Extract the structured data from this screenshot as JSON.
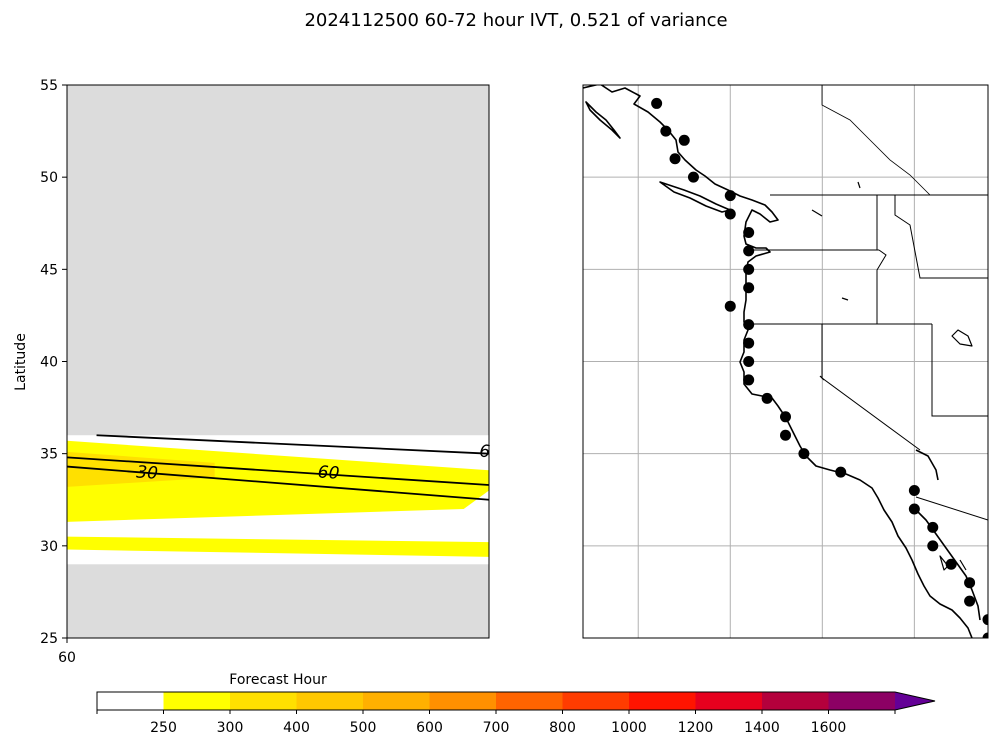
{
  "title": "2024112500 60-72 hour IVT, 0.521 of variance",
  "chart_data": [
    {
      "type": "heatmap",
      "panel": "left",
      "xlabel": "",
      "ylabel": "Latitude",
      "ylim": [
        25,
        55
      ],
      "yticks": [
        25,
        30,
        35,
        40,
        45,
        50,
        55
      ],
      "xticks": [
        "60"
      ],
      "background_color": "#dcdcdc",
      "data_region": {
        "lat_min": 29,
        "lat_max": 36
      },
      "filled_bands": [
        {
          "name": "band-upper",
          "color": "#ffff00",
          "points": [
            [
              0,
              35.7
            ],
            [
              1,
              34.1
            ],
            [
              1,
              33.0
            ],
            [
              0.94,
              32.0
            ],
            [
              0,
              31.3
            ]
          ]
        },
        {
          "name": "band-upper-core",
          "color": "#ffe000",
          "points": [
            [
              0,
              35.1
            ],
            [
              0.35,
              34.5
            ],
            [
              0.35,
              33.7
            ],
            [
              0,
              33.2
            ]
          ]
        },
        {
          "name": "band-lower",
          "color": "#ffff00",
          "points": [
            [
              0,
              30.5
            ],
            [
              1,
              30.2
            ],
            [
              1,
              29.4
            ],
            [
              0,
              29.8
            ]
          ]
        }
      ],
      "contours": [
        {
          "name": "contour-6",
          "points": [
            [
              0.07,
              36.0
            ],
            [
              1,
              35.0
            ]
          ]
        },
        {
          "name": "contour-60",
          "points": [
            [
              0,
              34.8
            ],
            [
              1,
              33.3
            ]
          ]
        },
        {
          "name": "contour-30",
          "points": [
            [
              0,
              34.3
            ],
            [
              1,
              32.5
            ]
          ]
        }
      ],
      "contour_labels": [
        {
          "text": "30",
          "x": 0.19,
          "y": 34.0
        },
        {
          "text": "60",
          "x": 0.62,
          "y": 34.0
        },
        {
          "text": "6",
          "x": 0.99,
          "y": 35.15
        }
      ]
    },
    {
      "type": "scatter",
      "panel": "right",
      "description_type": "map",
      "lon_range": [
        -135,
        -113
      ],
      "lat_range": [
        25,
        55
      ],
      "gridlines": true,
      "grid_lons": [
        -132,
        -127,
        -122,
        -117
      ],
      "grid_lats": [
        30,
        35,
        40,
        45,
        50
      ],
      "marker_color": "#000000",
      "points": [
        [
          -131.0,
          54.0
        ],
        [
          -130.5,
          52.5
        ],
        [
          -129.5,
          52.0
        ],
        [
          -130.0,
          51.0
        ],
        [
          -129.0,
          50.0
        ],
        [
          -127.0,
          49.0
        ],
        [
          -127.0,
          48.0
        ],
        [
          -126.0,
          47.0
        ],
        [
          -126.0,
          46.0
        ],
        [
          -126.0,
          45.0
        ],
        [
          -126.0,
          44.0
        ],
        [
          -127.0,
          43.0
        ],
        [
          -126.0,
          42.0
        ],
        [
          -126.0,
          41.0
        ],
        [
          -126.0,
          40.0
        ],
        [
          -126.0,
          39.0
        ],
        [
          -125.0,
          38.0
        ],
        [
          -124.0,
          37.0
        ],
        [
          -124.0,
          36.0
        ],
        [
          -123.0,
          35.0
        ],
        [
          -121.0,
          34.0
        ],
        [
          -117.0,
          33.0
        ],
        [
          -117.0,
          32.0
        ],
        [
          -116.0,
          31.0
        ],
        [
          -116.0,
          30.0
        ],
        [
          -115.0,
          29.0
        ],
        [
          -114.0,
          28.0
        ],
        [
          -114.0,
          27.0
        ],
        [
          -113.0,
          26.0
        ],
        [
          -113.0,
          25.0
        ]
      ]
    }
  ],
  "colorbar": {
    "label": "Forecast Hour",
    "tick_labels": [
      "250",
      "300",
      "400",
      "500",
      "600",
      "700",
      "800",
      "1000",
      "1200",
      "1400",
      "1600"
    ],
    "colors": [
      "#ffffff",
      "#ffff00",
      "#ffe000",
      "#ffc800",
      "#ffb000",
      "#ff9000",
      "#ff6400",
      "#ff3c00",
      "#ff1400",
      "#e6001e",
      "#b4003c",
      "#8c0064",
      "#640096"
    ]
  }
}
